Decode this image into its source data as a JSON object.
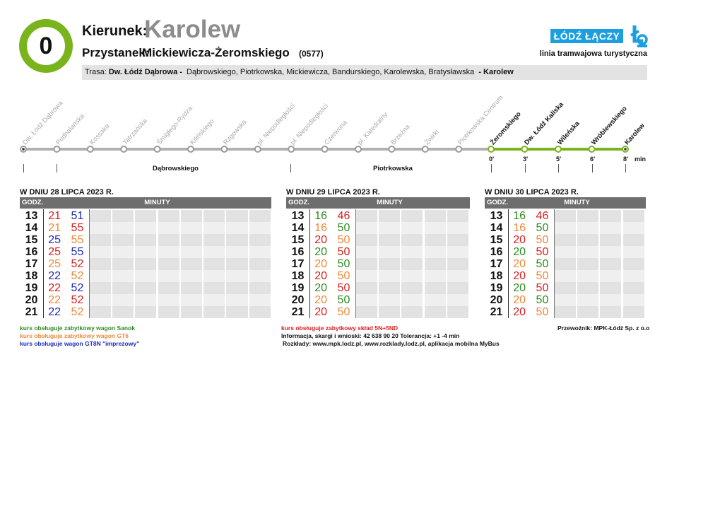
{
  "header": {
    "line_number": "0",
    "direction_label": "Kierunek:",
    "direction_value": "Karolew",
    "stop_label": "Przystanek:",
    "stop_value": "Mickiewicza-Żeromskiego",
    "stop_code": "(0577)",
    "logo_text": "ŁÓDŹ ŁĄCZY",
    "tagline": "linia tramwajowa turystyczna",
    "route_prefix": "Trasa:",
    "route_start": "Dw. Łódź Dąbrowa -",
    "route_streets": "Dąbrowskiego,  Piotrkowska,  Mickiewicza,  Bandurskiego,  Karolewska,  Bratysławska",
    "route_end": "- Karolew"
  },
  "colors": {
    "line_green": "#7ab41d",
    "logo_blue": "#1a9fe0",
    "green": "#2e8b1f",
    "red": "#d81e1e",
    "orange": "#f0883a",
    "blue": "#1f2ab5"
  },
  "stops": {
    "past": [
      "Dw. Łódź Dąbrowa",
      "Podhalańska",
      "Kossaka",
      "Tatrzańska",
      "Śmigłego-Rydza",
      "Kilińskiego",
      "Rzgowska",
      "pl. Niepodległości",
      "pl. Niepodległości",
      "Czerwona",
      "pl. Katedralny",
      "Brzeźna",
      "Żwirki",
      "Piotrkowska Centrum"
    ],
    "future": [
      "Żeromskiego",
      "Dw. Łódź Kaliska",
      "Wileńska",
      "Wróblewskiego",
      "Karolew"
    ],
    "minutes": [
      "0'",
      "3'",
      "5'",
      "6'",
      "8'"
    ],
    "min_unit": "min",
    "streets": [
      "Dąbrowskiego",
      "Piotrkowska"
    ]
  },
  "tables": [
    {
      "title": "W DNIU 28 LIPCA 2023 R.",
      "hour_header": "GODZ.",
      "minutes_header": "MINUTY",
      "rows": [
        {
          "hour": "13",
          "cells": [
            {
              "v": "21",
              "c": "red"
            },
            {
              "v": "51",
              "c": "blue"
            }
          ]
        },
        {
          "hour": "14",
          "cells": [
            {
              "v": "21",
              "c": "orange"
            },
            {
              "v": "55",
              "c": "red"
            }
          ]
        },
        {
          "hour": "15",
          "cells": [
            {
              "v": "25",
              "c": "blue"
            },
            {
              "v": "55",
              "c": "orange"
            }
          ]
        },
        {
          "hour": "16",
          "cells": [
            {
              "v": "25",
              "c": "red"
            },
            {
              "v": "55",
              "c": "blue"
            }
          ]
        },
        {
          "hour": "17",
          "cells": [
            {
              "v": "25",
              "c": "orange"
            },
            {
              "v": "52",
              "c": "red"
            }
          ]
        },
        {
          "hour": "18",
          "cells": [
            {
              "v": "22",
              "c": "blue"
            },
            {
              "v": "52",
              "c": "orange"
            }
          ]
        },
        {
          "hour": "19",
          "cells": [
            {
              "v": "22",
              "c": "red"
            },
            {
              "v": "52",
              "c": "blue"
            }
          ]
        },
        {
          "hour": "20",
          "cells": [
            {
              "v": "22",
              "c": "orange"
            },
            {
              "v": "52",
              "c": "red"
            }
          ]
        },
        {
          "hour": "21",
          "cells": [
            {
              "v": "22",
              "c": "blue"
            },
            {
              "v": "52",
              "c": "orange"
            }
          ]
        }
      ]
    },
    {
      "title": "W DNIU 29 LIPCA 2023 R.",
      "hour_header": "GODZ.",
      "minutes_header": "MINUTY",
      "rows": [
        {
          "hour": "13",
          "cells": [
            {
              "v": "16",
              "c": "green"
            },
            {
              "v": "46",
              "c": "red"
            }
          ]
        },
        {
          "hour": "14",
          "cells": [
            {
              "v": "16",
              "c": "orange"
            },
            {
              "v": "50",
              "c": "green"
            }
          ]
        },
        {
          "hour": "15",
          "cells": [
            {
              "v": "20",
              "c": "red"
            },
            {
              "v": "50",
              "c": "orange"
            }
          ]
        },
        {
          "hour": "16",
          "cells": [
            {
              "v": "20",
              "c": "green"
            },
            {
              "v": "50",
              "c": "red"
            }
          ]
        },
        {
          "hour": "17",
          "cells": [
            {
              "v": "20",
              "c": "orange"
            },
            {
              "v": "50",
              "c": "green"
            }
          ]
        },
        {
          "hour": "18",
          "cells": [
            {
              "v": "20",
              "c": "red"
            },
            {
              "v": "50",
              "c": "orange"
            }
          ]
        },
        {
          "hour": "19",
          "cells": [
            {
              "v": "20",
              "c": "green"
            },
            {
              "v": "50",
              "c": "red"
            }
          ]
        },
        {
          "hour": "20",
          "cells": [
            {
              "v": "20",
              "c": "orange"
            },
            {
              "v": "50",
              "c": "green"
            }
          ]
        },
        {
          "hour": "21",
          "cells": [
            {
              "v": "20",
              "c": "red"
            },
            {
              "v": "50",
              "c": "orange"
            }
          ]
        }
      ]
    },
    {
      "title": "W DNIU 30 LIPCA 2023 R.",
      "hour_header": "GODZ.",
      "minutes_header": "MINUTY",
      "rows": [
        {
          "hour": "13",
          "cells": [
            {
              "v": "16",
              "c": "green"
            },
            {
              "v": "46",
              "c": "red"
            }
          ]
        },
        {
          "hour": "14",
          "cells": [
            {
              "v": "16",
              "c": "orange"
            },
            {
              "v": "50",
              "c": "green"
            }
          ]
        },
        {
          "hour": "15",
          "cells": [
            {
              "v": "20",
              "c": "red"
            },
            {
              "v": "50",
              "c": "orange"
            }
          ]
        },
        {
          "hour": "16",
          "cells": [
            {
              "v": "20",
              "c": "green"
            },
            {
              "v": "50",
              "c": "red"
            }
          ]
        },
        {
          "hour": "17",
          "cells": [
            {
              "v": "20",
              "c": "orange"
            },
            {
              "v": "50",
              "c": "green"
            }
          ]
        },
        {
          "hour": "18",
          "cells": [
            {
              "v": "20",
              "c": "red"
            },
            {
              "v": "50",
              "c": "orange"
            }
          ]
        },
        {
          "hour": "19",
          "cells": [
            {
              "v": "20",
              "c": "green"
            },
            {
              "v": "50",
              "c": "red"
            }
          ]
        },
        {
          "hour": "20",
          "cells": [
            {
              "v": "20",
              "c": "orange"
            },
            {
              "v": "50",
              "c": "green"
            }
          ]
        },
        {
          "hour": "21",
          "cells": [
            {
              "v": "20",
              "c": "red"
            },
            {
              "v": "50",
              "c": "orange"
            }
          ]
        }
      ]
    }
  ],
  "notes": {
    "green": "kurs obsługuje zabytkowy wagon Sanok",
    "orange": "kurs obsługuje zabytkowy wagon GT6",
    "blue": "kurs obsługuje wagon GT8N \"imprezowy\"",
    "red": "kurs obsługuje zabytkowy skład 5N+5ND",
    "info": "Informacja, skargi i wnioski: 42 638 90 20 Tolerancja: +1 -4 min",
    "schedules": "Rozkłady: www.mpk.lodz.pl, www.rozklady.lodz.pl, aplikacja mobilna MyBus",
    "carrier": "Przewoźnik: MPK-Łódź Sp. z o.o"
  }
}
